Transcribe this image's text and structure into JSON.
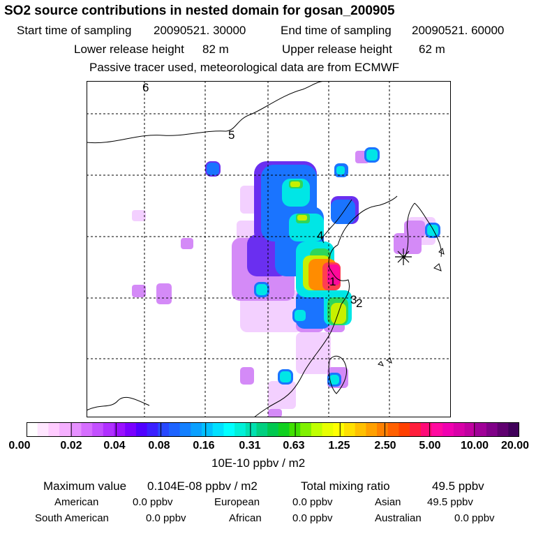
{
  "title": "SO2 source contributions in nested domain for gosan_200905",
  "header": {
    "start_label": "Start time of sampling",
    "start_value": "20090521. 30000",
    "end_label": "End time of sampling",
    "end_value": "20090521. 60000",
    "lower_label": "Lower release height",
    "lower_value": "82 m",
    "upper_label": "Upper release height",
    "upper_value": "62 m",
    "note": "Passive tracer used, meteorological data are from ECMWF"
  },
  "map": {
    "labels": [
      "1",
      "2",
      "3",
      "4",
      "5",
      "6"
    ],
    "receptor_marker": "asterisk-icon"
  },
  "colorbar": {
    "ticks": [
      "0.00",
      "0.02",
      "0.04",
      "0.08",
      "0.16",
      "0.31",
      "0.63",
      "1.25",
      "2.50",
      "5.00",
      "10.00",
      "20.00"
    ],
    "unit": "10E-10 ppbv / m2",
    "colors": [
      "#ffffff",
      "#ffe6ff",
      "#ffccff",
      "#f5b0ff",
      "#e690ff",
      "#d66eff",
      "#c350ff",
      "#b030ff",
      "#9a10ff",
      "#7a00ff",
      "#5000ff",
      "#3a20ff",
      "#2848ff",
      "#1e64ff",
      "#1480ff",
      "#0aa0ff",
      "#00c0ff",
      "#00e0ff",
      "#00ffff",
      "#00f0d8",
      "#00e0b0",
      "#00d080",
      "#00c850",
      "#10d020",
      "#40e000",
      "#80f000",
      "#c0ff00",
      "#e8ff00",
      "#ffff00",
      "#ffe000",
      "#ffc000",
      "#ffa000",
      "#ff8000",
      "#ff6000",
      "#ff4000",
      "#ff1e3c",
      "#ff0a78",
      "#ff0aa0",
      "#f000b0",
      "#d800a8",
      "#c000a0",
      "#a00098",
      "#800088",
      "#600070",
      "#40005a"
    ]
  },
  "stats": {
    "max_label": "Maximum value",
    "max_value": "0.104E-08 ppbv / m2",
    "total_label": "Total mixing ratio",
    "total_value": "49.5 ppbv",
    "regions": [
      {
        "name": "American",
        "value": "0.0 ppbv"
      },
      {
        "name": "European",
        "value": "0.0 ppbv"
      },
      {
        "name": "Asian",
        "value": "49.5 ppbv"
      },
      {
        "name": "South American",
        "value": "0.0 ppbv"
      },
      {
        "name": "African",
        "value": "0.0 ppbv"
      },
      {
        "name": "Australian",
        "value": "0.0 ppbv"
      }
    ]
  }
}
